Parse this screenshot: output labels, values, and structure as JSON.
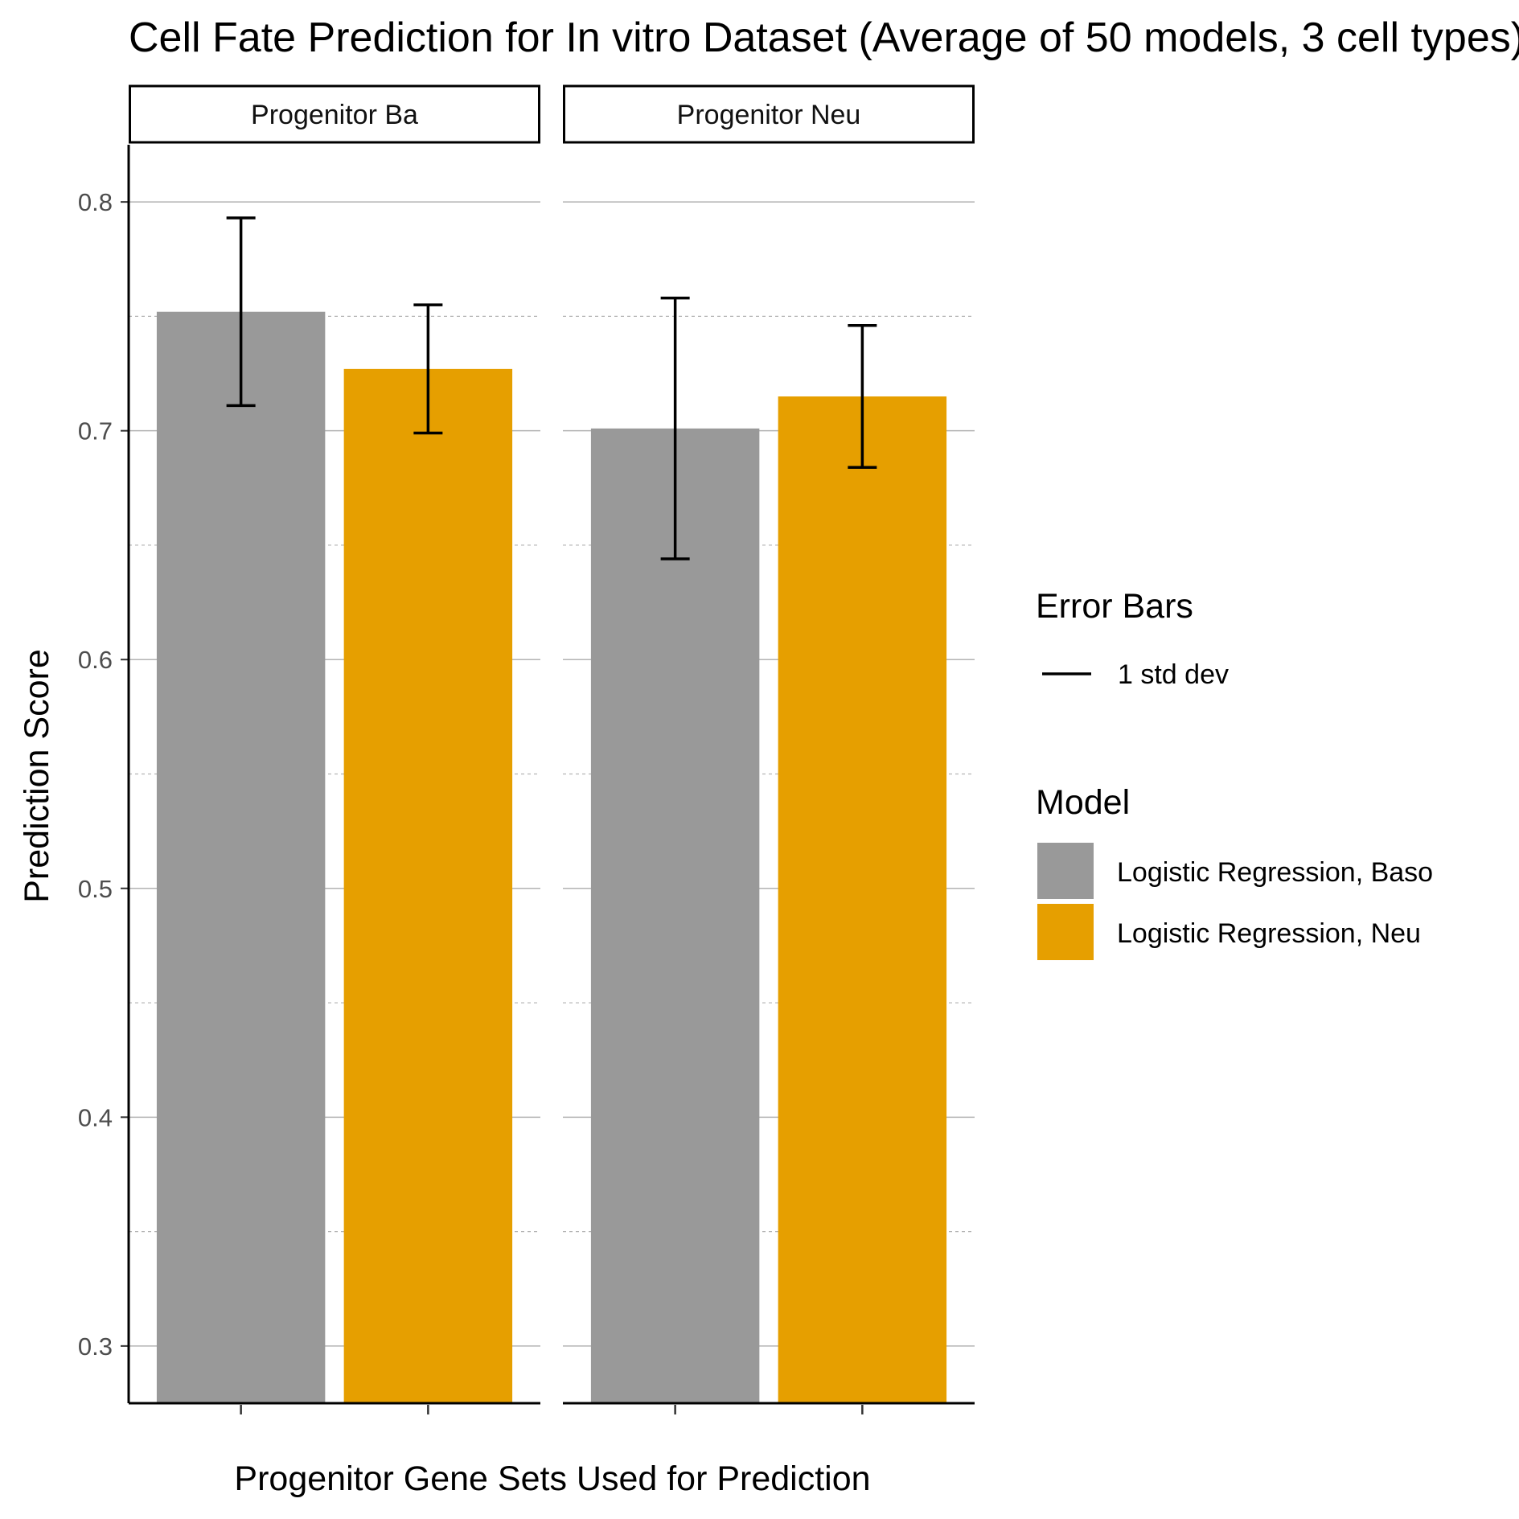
{
  "chart_data": {
    "type": "bar",
    "title": "Cell Fate Prediction for In vitro Dataset (Average of 50 models, 3 cell types)",
    "xlabel": "Progenitor Gene Sets Used for Prediction",
    "ylabel": "Prediction Score",
    "ylim": [
      0.275,
      0.825
    ],
    "yticks": [
      0.3,
      0.4,
      0.5,
      0.6,
      0.7,
      0.8
    ],
    "ytick_labels": [
      "0.3",
      "0.4",
      "0.5",
      "0.6",
      "0.7",
      "0.8"
    ],
    "grid": true,
    "legend_position": "right",
    "facets": [
      "Progenitor Ba",
      "Progenitor Neu"
    ],
    "series": [
      {
        "name": "Logistic Regression, Baso",
        "color": "#999999",
        "values": [
          0.752,
          0.701
        ],
        "error_low": [
          0.711,
          0.644
        ],
        "error_high": [
          0.793,
          0.758
        ]
      },
      {
        "name": "Logistic Regression, Neu",
        "color": "#E69F00",
        "values": [
          0.727,
          0.715
        ],
        "error_low": [
          0.699,
          0.684
        ],
        "error_high": [
          0.755,
          0.746
        ]
      }
    ],
    "legends": {
      "error_bars_title": "Error Bars",
      "error_bars_label": "1 std dev",
      "model_title": "Model"
    }
  }
}
